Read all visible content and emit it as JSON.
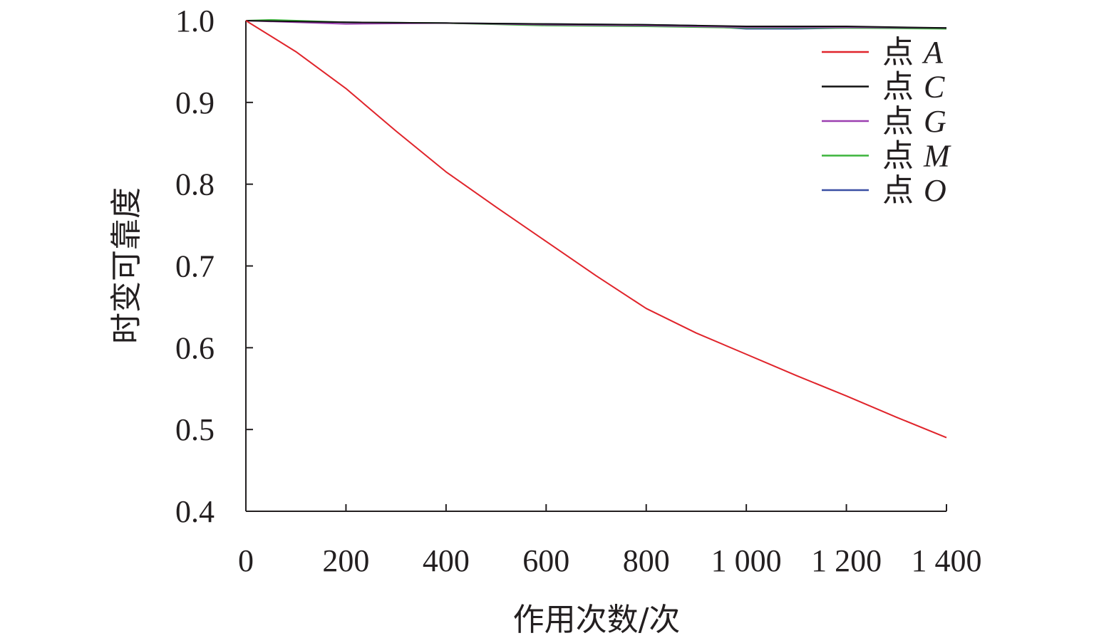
{
  "chart_data": {
    "type": "line",
    "title": "",
    "xlabel": "作用次数/次",
    "ylabel": "时变可靠度",
    "xlim": [
      0,
      1400
    ],
    "ylim": [
      0.4,
      1.0
    ],
    "x_ticks": [
      0,
      200,
      400,
      600,
      800,
      1000,
      1200,
      1400
    ],
    "x_tick_labels": [
      "0",
      "200",
      "400",
      "600",
      "800",
      "1 000",
      "1 200",
      "1 400"
    ],
    "y_ticks": [
      0.4,
      0.5,
      0.6,
      0.7,
      0.8,
      0.9,
      1.0
    ],
    "y_tick_labels": [
      "0.4",
      "0.5",
      "0.6",
      "0.7",
      "0.8",
      "0.9",
      "1.0"
    ],
    "grid": false,
    "legend_position": "top-right",
    "series": [
      {
        "name": "点 A",
        "legend_prefix": "点",
        "legend_var": "A",
        "color": "#e0242b",
        "x": [
          0,
          100,
          200,
          300,
          400,
          500,
          600,
          700,
          800,
          900,
          1000,
          1100,
          1200,
          1300,
          1400
        ],
        "y": [
          1.0,
          0.962,
          0.917,
          0.865,
          0.815,
          0.772,
          0.73,
          0.688,
          0.648,
          0.618,
          0.592,
          0.566,
          0.541,
          0.515,
          0.49
        ]
      },
      {
        "name": "点 C",
        "legend_prefix": "点",
        "legend_var": "C",
        "color": "#111111",
        "x": [
          0,
          200,
          400,
          600,
          800,
          1000,
          1200,
          1400
        ],
        "y": [
          1.0,
          0.998,
          0.997,
          0.996,
          0.995,
          0.993,
          0.993,
          0.991
        ]
      },
      {
        "name": "点 G",
        "legend_prefix": "点",
        "legend_var": "G",
        "color": "#9b3fb0",
        "x": [
          0,
          200,
          400,
          600,
          800,
          1000,
          1200,
          1400
        ],
        "y": [
          1.0,
          0.996,
          0.997,
          0.995,
          0.994,
          0.992,
          0.992,
          0.991
        ]
      },
      {
        "name": "点 M",
        "legend_prefix": "点",
        "legend_var": "M",
        "color": "#3cb43c",
        "x": [
          0,
          50,
          200,
          400,
          600,
          800,
          1000,
          1200,
          1400
        ],
        "y": [
          1.0,
          1.001,
          0.998,
          0.997,
          0.994,
          0.993,
          0.991,
          0.991,
          0.99
        ]
      },
      {
        "name": "点 O",
        "legend_prefix": "点",
        "legend_var": "O",
        "color": "#3a4fa3",
        "x": [
          0,
          200,
          400,
          600,
          800,
          900,
          1000,
          1100,
          1200,
          1400
        ],
        "y": [
          1.0,
          0.998,
          0.997,
          0.996,
          0.995,
          0.994,
          0.99,
          0.99,
          0.991,
          0.991
        ]
      }
    ]
  }
}
